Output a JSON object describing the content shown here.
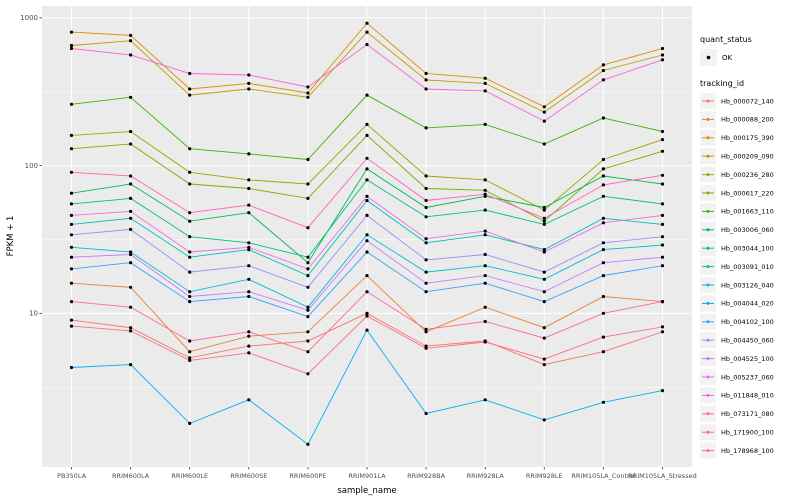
{
  "chart_data": {
    "type": "line",
    "title": "",
    "xlabel": "sample_name",
    "ylabel": "FPKM + 1",
    "y_scale": "log10",
    "ylim": [
      1,
      1000
    ],
    "y_ticks": [
      10,
      100,
      1000
    ],
    "y_tick_labels": [
      "10",
      "100",
      "1000"
    ],
    "grid": true,
    "panel_color": "#EBEBEB",
    "grid_color": "#FFFFFF",
    "point_color": "#000000",
    "tick_label_color": "#4D4D4D",
    "legend_key_color": "#F2F2F2",
    "legend_position": "right",
    "categories": [
      "PB350LA",
      "RRIM600LA",
      "RRIM600LE",
      "RRIM600SE",
      "RRIM600PE",
      "RRIM901LA",
      "RRIM928BA",
      "RRIM928LA",
      "RRIM928LE",
      "RRIM105LA_Control",
      "RRIM105LA_Stressed"
    ],
    "legend": {
      "quant_status_title": "quant_status",
      "quant_status_item": "OK",
      "tracking_id_title": "tracking_id"
    },
    "series": [
      {
        "name": "Hb_000072_140",
        "color": "#F8766D",
        "values": [
          9.0,
          8.0,
          5.0,
          6.0,
          6.5,
          10.0,
          6.0,
          6.5,
          4.5,
          5.5,
          7.5
        ]
      },
      {
        "name": "Hb_000088_200",
        "color": "#EA8331",
        "values": [
          16,
          15,
          5.5,
          7,
          7.5,
          18,
          7.5,
          11,
          8,
          13,
          12
        ]
      },
      {
        "name": "Hb_000175_390",
        "color": "#D89000",
        "values": [
          800,
          760,
          330,
          360,
          310,
          920,
          420,
          390,
          250,
          480,
          620
        ]
      },
      {
        "name": "Hb_000209_090",
        "color": "#C09B00",
        "values": [
          650,
          700,
          300,
          330,
          290,
          800,
          380,
          360,
          230,
          440,
          560
        ]
      },
      {
        "name": "Hb_000236_280",
        "color": "#A3A500",
        "values": [
          160,
          170,
          90,
          80,
          75,
          190,
          85,
          80,
          50,
          110,
          150
        ]
      },
      {
        "name": "Hb_000617_220",
        "color": "#7CAE00",
        "values": [
          130,
          140,
          75,
          70,
          60,
          160,
          70,
          68,
          42,
          95,
          125
        ]
      },
      {
        "name": "Hb_001663_110",
        "color": "#39B600",
        "values": [
          260,
          290,
          130,
          120,
          110,
          300,
          180,
          190,
          140,
          210,
          170
        ]
      },
      {
        "name": "Hb_003006_060",
        "color": "#00BB4E",
        "values": [
          65,
          75,
          42,
          48,
          22,
          95,
          52,
          62,
          52,
          85,
          75
        ]
      },
      {
        "name": "Hb_003044_100",
        "color": "#00C087",
        "values": [
          55,
          60,
          33,
          30,
          24,
          80,
          45,
          50,
          40,
          62,
          55
        ]
      },
      {
        "name": "Hb_003091_010",
        "color": "#00C0AF",
        "values": [
          40,
          44,
          24,
          27,
          18,
          58,
          30,
          34,
          27,
          44,
          40
        ]
      },
      {
        "name": "Hb_003126_040",
        "color": "#00BCD8",
        "values": [
          28,
          26,
          14,
          17,
          11,
          34,
          19,
          21,
          17,
          27,
          29
        ]
      },
      {
        "name": "Hb_004044_020",
        "color": "#00B0F6",
        "values": [
          4.3,
          4.5,
          1.8,
          2.6,
          1.3,
          7.7,
          2.1,
          2.6,
          1.9,
          2.5,
          3.0
        ]
      },
      {
        "name": "Hb_004102_100",
        "color": "#35A2FF",
        "values": [
          20,
          22,
          12,
          13,
          9.5,
          26,
          14,
          16,
          12,
          18,
          21
        ]
      },
      {
        "name": "Hb_004450_060",
        "color": "#9590FF",
        "values": [
          34,
          37,
          19,
          21,
          15,
          46,
          23,
          25,
          19,
          30,
          33
        ]
      },
      {
        "name": "Hb_004525_100",
        "color": "#C77CFF",
        "values": [
          24,
          25,
          13,
          14,
          10.5,
          31,
          16,
          18,
          14,
          22,
          24
        ]
      },
      {
        "name": "Hb_005237_060",
        "color": "#E76BF3",
        "values": [
          46,
          49,
          26,
          28,
          20,
          62,
          32,
          36,
          26,
          41,
          46
        ]
      },
      {
        "name": "Hb_011848_010",
        "color": "#FA62DB",
        "values": [
          620,
          560,
          420,
          410,
          340,
          660,
          330,
          320,
          200,
          380,
          520
        ]
      },
      {
        "name": "Hb_073171_080",
        "color": "#FF62BC",
        "values": [
          90,
          85,
          48,
          54,
          38,
          112,
          58,
          64,
          44,
          74,
          86
        ]
      },
      {
        "name": "Hb_171900_100",
        "color": "#FF6A98",
        "values": [
          12,
          11,
          6.5,
          7.5,
          5.5,
          14,
          7.8,
          8.8,
          6.8,
          10,
          12
        ]
      },
      {
        "name": "Hb_178968_100",
        "color": "#FF6C91",
        "values": [
          8.2,
          7.6,
          4.8,
          5.4,
          3.9,
          9.6,
          5.8,
          6.4,
          4.9,
          6.9,
          8.1
        ]
      }
    ]
  }
}
